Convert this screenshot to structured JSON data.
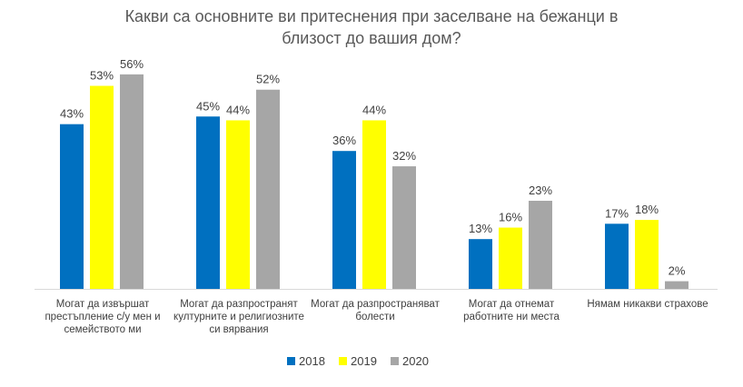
{
  "chart_data": {
    "type": "bar",
    "title_lines": [
      "Какви са основните ви притеснения при заселване на бежанци в",
      "близост до вашия дом?"
    ],
    "categories": [
      [
        "Могат да извършат",
        "престъпление с/у мен и",
        "семейството ми"
      ],
      [
        "Могат да разпространят",
        "културните и религиозните",
        "си вярвания"
      ],
      [
        "Могат да разпространяват",
        "болести"
      ],
      [
        "Могат да отнемат",
        "работните ни места"
      ],
      [
        "Нямам никакви страхове"
      ]
    ],
    "series": [
      {
        "name": "2018",
        "color": "#0070c0",
        "values": [
          43,
          45,
          36,
          13,
          17
        ]
      },
      {
        "name": "2019",
        "color": "#ffff00",
        "values": [
          53,
          44,
          44,
          16,
          18
        ]
      },
      {
        "name": "2020",
        "color": "#a6a6a6",
        "values": [
          56,
          52,
          32,
          23,
          2
        ]
      }
    ],
    "value_suffix": "%",
    "ylim": [
      0,
      60
    ],
    "legend_position": "bottom",
    "grid": false
  }
}
